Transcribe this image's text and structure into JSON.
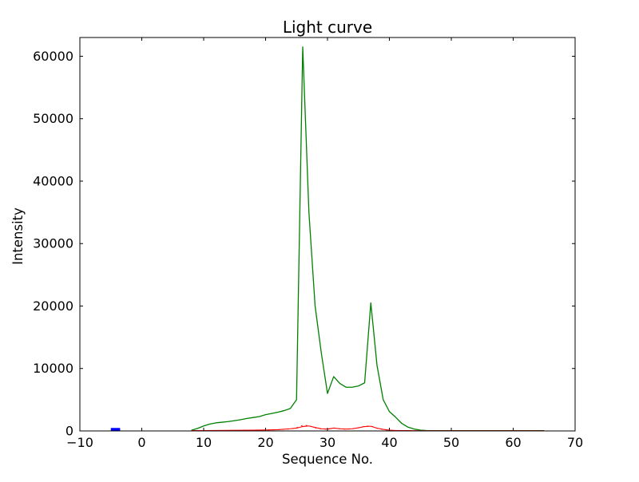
{
  "chart_data": {
    "type": "line",
    "title": "Light curve",
    "xlabel": "Sequence No.",
    "ylabel": "Intensity",
    "xlim": [
      -10,
      70
    ],
    "ylim": [
      0,
      63000
    ],
    "grid": false,
    "legend": null,
    "axis_color": "#000000",
    "background_color": "#ffffff",
    "xticks": {
      "values": [
        -10,
        0,
        10,
        20,
        30,
        40,
        50,
        60,
        70
      ],
      "labels": [
        "−10",
        "0",
        "10",
        "20",
        "30",
        "40",
        "50",
        "60",
        "70"
      ]
    },
    "yticks": {
      "values": [
        0,
        10000,
        20000,
        30000,
        40000,
        50000,
        60000
      ],
      "labels": [
        "0",
        "10000",
        "20000",
        "30000",
        "40000",
        "50000",
        "60000"
      ]
    },
    "series": [
      {
        "name": "main-light-curve-green",
        "color": "#008000",
        "width": 1.3,
        "dash": null,
        "x": [
          8,
          9,
          10,
          11,
          12,
          13,
          14,
          15,
          16,
          17,
          18,
          19,
          20,
          21,
          22,
          23,
          24,
          25,
          26,
          27,
          28,
          29,
          30,
          31,
          32,
          33,
          34,
          35,
          36,
          37,
          38,
          39,
          40,
          41,
          42,
          43,
          44,
          45,
          46,
          50,
          55,
          60,
          65
        ],
        "y": [
          100,
          400,
          800,
          1100,
          1300,
          1400,
          1500,
          1650,
          1800,
          2000,
          2150,
          2300,
          2600,
          2800,
          3000,
          3250,
          3600,
          5000,
          61500,
          35000,
          20000,
          12500,
          6000,
          8700,
          7600,
          7000,
          7000,
          7200,
          7700,
          20500,
          10500,
          5000,
          3100,
          2200,
          1200,
          600,
          300,
          120,
          60,
          50,
          50,
          50,
          40
        ]
      },
      {
        "name": "secondary-curve-red-solid",
        "color": "#ff0000",
        "width": 1.1,
        "dash": null,
        "x": [
          8,
          10,
          12,
          14,
          16,
          18,
          20,
          22,
          24,
          25,
          26,
          27,
          28,
          29,
          30,
          31,
          32,
          33,
          34,
          35,
          36,
          37,
          38,
          39,
          40,
          41,
          42,
          43,
          44,
          45,
          50,
          55,
          60,
          65
        ],
        "y": [
          50,
          60,
          80,
          90,
          100,
          120,
          150,
          200,
          350,
          450,
          700,
          800,
          550,
          350,
          300,
          450,
          350,
          300,
          350,
          500,
          700,
          750,
          450,
          250,
          120,
          80,
          60,
          50,
          40,
          30,
          30,
          30,
          30,
          30
        ]
      },
      {
        "name": "secondary-curve-red-dotted",
        "color": "#ff0000",
        "width": 1,
        "dash": "2,4",
        "x": [
          8,
          10,
          12,
          14,
          16,
          18,
          20,
          22,
          24,
          25,
          26,
          27,
          28,
          29,
          30,
          31,
          32,
          33,
          34,
          35,
          36,
          37,
          38,
          39,
          40,
          41,
          42,
          43,
          44,
          45,
          50,
          55,
          60,
          65
        ],
        "y": [
          40,
          50,
          60,
          70,
          90,
          110,
          140,
          190,
          320,
          500,
          900,
          850,
          500,
          320,
          280,
          480,
          330,
          280,
          330,
          520,
          750,
          800,
          420,
          220,
          100,
          70,
          50,
          40,
          30,
          20,
          20,
          20,
          20,
          20
        ]
      },
      {
        "name": "baseline-marker-blue",
        "color": "#0000ff",
        "width": 4,
        "dash": null,
        "x": [
          -5,
          -3.5
        ],
        "y": [
          220,
          220
        ]
      }
    ]
  }
}
